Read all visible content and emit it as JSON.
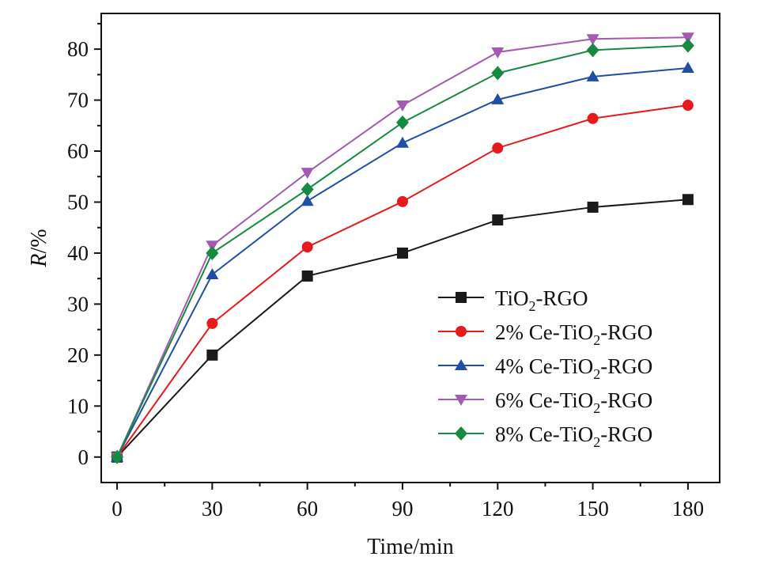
{
  "chart_data": {
    "type": "line",
    "title": "",
    "xlabel": "Time/min",
    "ylabel_italic": "R",
    "ylabel_rest": "/%",
    "x": [
      0,
      30,
      60,
      90,
      120,
      150,
      180
    ],
    "xticks": [
      "0",
      "30",
      "60",
      "90",
      "120",
      "150",
      "180"
    ],
    "yticks": [
      "0",
      "10",
      "20",
      "30",
      "40",
      "50",
      "60",
      "70",
      "80"
    ],
    "xlim": [
      -5,
      190
    ],
    "ylim": [
      -5,
      87
    ],
    "grid": false,
    "legend_position": "lower-right",
    "series": [
      {
        "name": "TiO2-RGO",
        "label_pre": "TiO",
        "label_sub": "2",
        "label_post": "-RGO",
        "color": "#1a1a1a",
        "marker": "square",
        "values": [
          0,
          20,
          35.5,
          40,
          46.5,
          49,
          50.5
        ]
      },
      {
        "name": "2% Ce-TiO2-RGO",
        "label_pre": "2% Ce-TiO",
        "label_sub": "2",
        "label_post": "-RGO",
        "color": "#e8191c",
        "marker": "circle",
        "values": [
          0,
          26.2,
          41.2,
          50.1,
          60.6,
          66.4,
          69
        ]
      },
      {
        "name": "4% Ce-TiO2-RGO",
        "label_pre": "4% Ce-TiO",
        "label_sub": "2",
        "label_post": "-RGO",
        "color": "#1f4fa5",
        "marker": "triangle-up",
        "values": [
          0,
          35.8,
          50.2,
          61.6,
          70.1,
          74.6,
          76.3
        ]
      },
      {
        "name": "6% Ce-TiO2-RGO",
        "label_pre": "6% Ce-TiO",
        "label_sub": "2",
        "label_post": "-RGO",
        "color": "#a35ab0",
        "marker": "triangle-down",
        "values": [
          0,
          41.5,
          55.8,
          69,
          79.4,
          82,
          82.3
        ]
      },
      {
        "name": "8% Ce-TiO2-RGO",
        "label_pre": "8% Ce-TiO",
        "label_sub": "2",
        "label_post": "-RGO",
        "color": "#168a3e",
        "marker": "diamond",
        "values": [
          0,
          40,
          52.5,
          65.6,
          75.3,
          79.8,
          80.7
        ]
      }
    ]
  }
}
